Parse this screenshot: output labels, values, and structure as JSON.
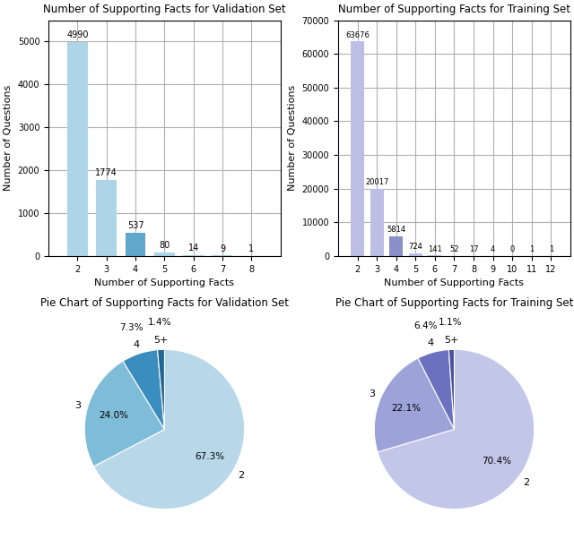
{
  "chart_data": [
    {
      "type": "bar",
      "title": "Number of Supporting Facts for Validation Set",
      "xlabel": "Number of Supporting Facts",
      "ylabel": "Number of Questions",
      "x": [
        2,
        3,
        4,
        5,
        6,
        7,
        8
      ],
      "values": [
        4990,
        1774,
        537,
        80,
        14,
        9,
        1
      ],
      "colors": [
        "#aed4e8",
        "#aed4e8",
        "#5fa8cc",
        "#aed4e8",
        "#aed4e8",
        "#aed4e8",
        "#aed4e8"
      ],
      "xlim": [
        1,
        9
      ],
      "xticks": [
        2,
        3,
        4,
        5,
        6,
        7,
        8
      ],
      "ylim": [
        0,
        5500
      ],
      "yticks": [
        0,
        1000,
        2000,
        3000,
        4000,
        5000
      ],
      "grid": true,
      "data_labels": true
    },
    {
      "type": "bar",
      "title": "Number of Supporting Facts for Training Set",
      "xlabel": "Number of Supporting Facts",
      "ylabel": "Number of Questions",
      "x": [
        2,
        3,
        4,
        5,
        6,
        7,
        8,
        9,
        10,
        11,
        12
      ],
      "values": [
        63676,
        20017,
        5814,
        724,
        141,
        52,
        17,
        4,
        0,
        1,
        1
      ],
      "colors": [
        "#bbbfe6",
        "#bbbfe6",
        "#8b8fc8",
        "#bbbfe6",
        "#bbbfe6",
        "#bbbfe6",
        "#bbbfe6",
        "#bbbfe6",
        "#bbbfe6",
        "#bbbfe6",
        "#bbbfe6"
      ],
      "xlim": [
        1,
        13
      ],
      "xticks": [
        2,
        3,
        4,
        5,
        6,
        7,
        8,
        9,
        10,
        11,
        12
      ],
      "ylim": [
        0,
        70000
      ],
      "yticks": [
        0,
        10000,
        20000,
        30000,
        40000,
        50000,
        60000,
        70000
      ],
      "grid": true,
      "data_labels": true
    },
    {
      "type": "pie",
      "title": "Pie Chart of Supporting Facts for Validation Set",
      "categories": [
        "2",
        "3",
        "4",
        "5+"
      ],
      "values": [
        67.3,
        24.0,
        7.3,
        1.4
      ],
      "value_labels": [
        "67.3%",
        "24.0%",
        "7.3%",
        "1.4%"
      ],
      "colors": [
        "#b8d8ea",
        "#7fbcd8",
        "#3a8dbf",
        "#1e6699"
      ],
      "data_labels": true
    },
    {
      "type": "pie",
      "title": "Pie Chart of Supporting Facts for Training Set",
      "categories": [
        "2",
        "3",
        "4",
        "5+"
      ],
      "values": [
        70.4,
        22.1,
        6.4,
        1.1
      ],
      "value_labels": [
        "70.4%",
        "22.1%",
        "6.4%",
        "1.1%"
      ],
      "colors": [
        "#c2c6e8",
        "#9da2d8",
        "#6b71be",
        "#4a50a4"
      ],
      "data_labels": true
    }
  ]
}
